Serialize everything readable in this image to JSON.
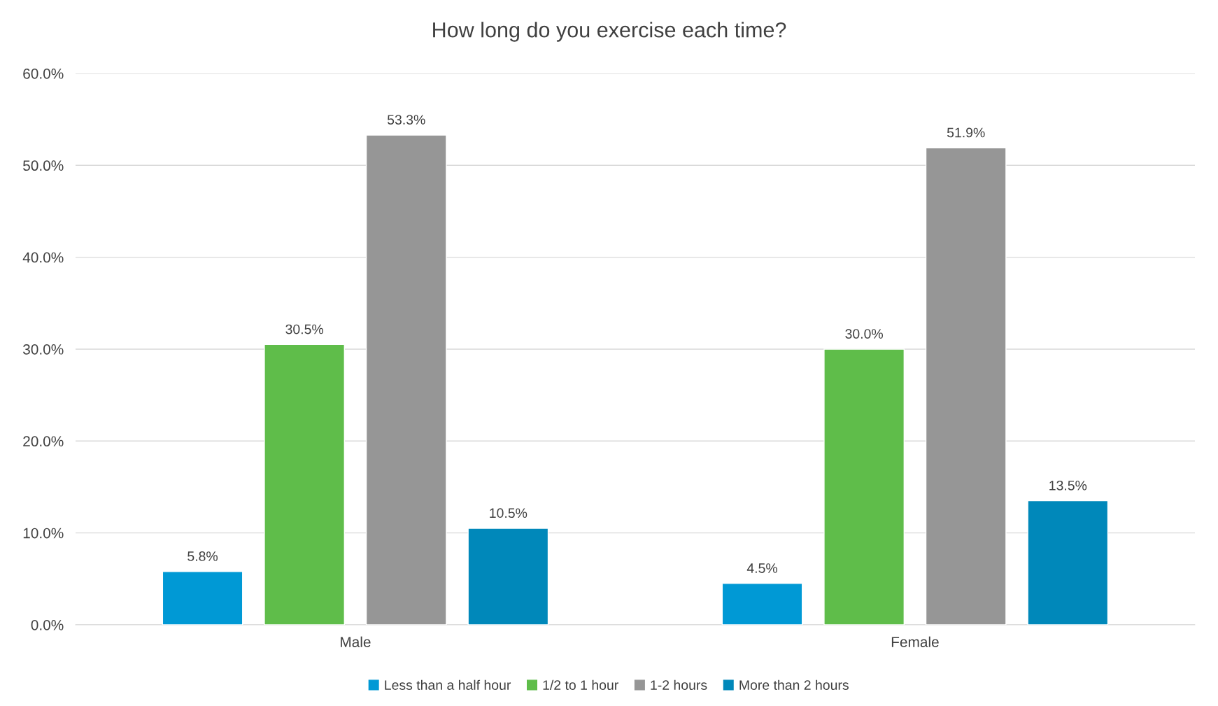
{
  "chart_data": {
    "type": "bar",
    "title": "How long do you exercise each time?",
    "categories": [
      "Male",
      "Female"
    ],
    "series": [
      {
        "name": "Less than a half hour",
        "color": "#0099d5",
        "values": [
          5.8,
          4.5
        ],
        "value_labels": [
          "5.8%",
          "4.5%"
        ]
      },
      {
        "name": "1/2 to 1 hour",
        "color": "#5fbd4a",
        "values": [
          30.5,
          30.0
        ],
        "value_labels": [
          "30.5%",
          "30.0%"
        ]
      },
      {
        "name": "1-2 hours",
        "color": "#969696",
        "values": [
          53.3,
          51.9
        ],
        "value_labels": [
          "53.3%",
          "51.9%"
        ]
      },
      {
        "name": "More than 2 hours",
        "color": "#0088ba",
        "values": [
          10.5,
          13.5
        ],
        "value_labels": [
          "10.5%",
          "13.5%"
        ]
      }
    ],
    "ylim": [
      0,
      60
    ],
    "yticks": [
      {
        "value": 0,
        "label": "0.0%"
      },
      {
        "value": 10,
        "label": "10.0%"
      },
      {
        "value": 20,
        "label": "20.0%"
      },
      {
        "value": 30,
        "label": "30.0%"
      },
      {
        "value": 40,
        "label": "40.0%"
      },
      {
        "value": 50,
        "label": "50.0%"
      },
      {
        "value": 60,
        "label": "60.0%"
      }
    ],
    "grid": "y",
    "legend": "bottom"
  }
}
